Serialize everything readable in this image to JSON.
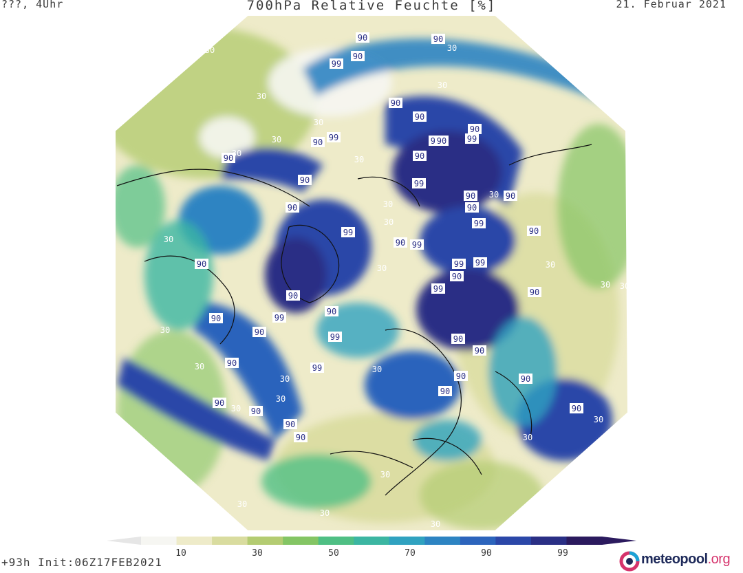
{
  "header": {
    "left": "???, 4Uhr",
    "title": "700hPa Relative Feuchte [%]",
    "right": "21. Februar 2021"
  },
  "footer": {
    "init": "+93h Init:06Z17FEB2021"
  },
  "legend": {
    "ticks": [
      "10",
      "30",
      "50",
      "70",
      "90",
      "99"
    ],
    "colors": [
      "#f6f6f2",
      "#eeebc9",
      "#d9dc9f",
      "#b4cc72",
      "#84c564",
      "#4fbf84",
      "#3cb6a2",
      "#30a2c0",
      "#2d84c2",
      "#2c64bc",
      "#2b47a8",
      "#2a2f85",
      "#2b1a5e"
    ]
  },
  "logo": {
    "name": "meteopool",
    "tld": ".org"
  },
  "map": {
    "contour_labels": [
      {
        "text": "30",
        "dark": false
      },
      {
        "text": "90",
        "dark": true
      },
      {
        "text": "90",
        "dark": true
      },
      {
        "text": "30",
        "dark": false
      },
      {
        "text": "99",
        "dark": true
      },
      {
        "text": "90",
        "dark": true
      },
      {
        "text": "30",
        "dark": false
      },
      {
        "text": "90",
        "dark": true
      },
      {
        "text": "30",
        "dark": false
      },
      {
        "text": "90",
        "dark": true
      },
      {
        "text": "30",
        "dark": false
      },
      {
        "text": "99",
        "dark": true
      },
      {
        "text": "90",
        "dark": true
      },
      {
        "text": "30",
        "dark": false
      },
      {
        "text": "90",
        "dark": true
      },
      {
        "text": "30",
        "dark": false
      },
      {
        "text": "99",
        "dark": true
      },
      {
        "text": "90",
        "dark": true
      },
      {
        "text": "90",
        "dark": true
      },
      {
        "text": "99",
        "dark": true
      },
      {
        "text": "90",
        "dark": true
      },
      {
        "text": "30",
        "dark": false
      },
      {
        "text": "99",
        "dark": true
      },
      {
        "text": "90",
        "dark": true
      },
      {
        "text": "90",
        "dark": true
      },
      {
        "text": "90",
        "dark": true
      },
      {
        "text": "30",
        "dark": false
      },
      {
        "text": "90",
        "dark": true
      },
      {
        "text": "30",
        "dark": false
      },
      {
        "text": "90",
        "dark": true
      },
      {
        "text": "30",
        "dark": false
      },
      {
        "text": "99",
        "dark": true
      },
      {
        "text": "90",
        "dark": true
      },
      {
        "text": "99",
        "dark": true
      },
      {
        "text": "99",
        "dark": true
      },
      {
        "text": "90",
        "dark": true
      },
      {
        "text": "30",
        "dark": false
      },
      {
        "text": "90",
        "dark": true
      },
      {
        "text": "30",
        "dark": false
      },
      {
        "text": "99",
        "dark": true
      },
      {
        "text": "99",
        "dark": true
      },
      {
        "text": "30",
        "dark": false
      },
      {
        "text": "90",
        "dark": true
      },
      {
        "text": "90",
        "dark": true
      },
      {
        "text": "30",
        "dark": false
      },
      {
        "text": "90",
        "dark": true
      },
      {
        "text": "99",
        "dark": true
      },
      {
        "text": "30",
        "dark": false
      },
      {
        "text": "90",
        "dark": true
      },
      {
        "text": "90",
        "dark": true
      },
      {
        "text": "99",
        "dark": true
      },
      {
        "text": "90",
        "dark": true
      },
      {
        "text": "99",
        "dark": true
      },
      {
        "text": "90",
        "dark": true
      },
      {
        "text": "90",
        "dark": true
      },
      {
        "text": "30",
        "dark": false
      },
      {
        "text": "90",
        "dark": true
      },
      {
        "text": "99",
        "dark": true
      },
      {
        "text": "30",
        "dark": false
      },
      {
        "text": "30",
        "dark": false
      },
      {
        "text": "90",
        "dark": true
      },
      {
        "text": "90",
        "dark": true
      },
      {
        "text": "30",
        "dark": false
      },
      {
        "text": "90",
        "dark": true
      },
      {
        "text": "30",
        "dark": false
      },
      {
        "text": "90",
        "dark": true
      },
      {
        "text": "90",
        "dark": true
      },
      {
        "text": "90",
        "dark": true
      },
      {
        "text": "30",
        "dark": false
      },
      {
        "text": "90",
        "dark": true
      },
      {
        "text": "90",
        "dark": true
      },
      {
        "text": "30",
        "dark": false
      },
      {
        "text": "30",
        "dark": false
      },
      {
        "text": "30",
        "dark": false
      },
      {
        "text": "30",
        "dark": false
      },
      {
        "text": "30",
        "dark": false
      },
      {
        "text": "30",
        "dark": false
      }
    ]
  }
}
